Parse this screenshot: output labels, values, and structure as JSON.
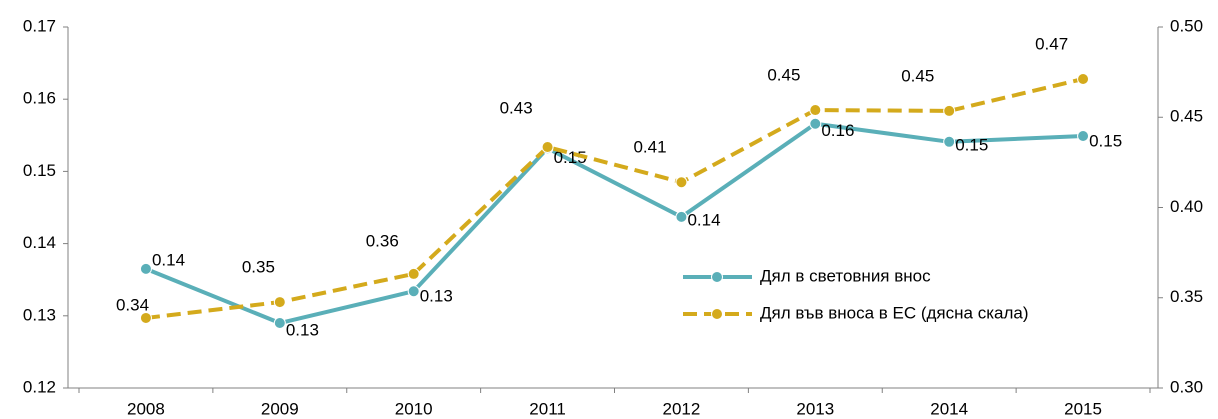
{
  "chart_data": {
    "type": "line",
    "categories": [
      "2008",
      "2009",
      "2010",
      "2011",
      "2012",
      "2013",
      "2014",
      "2015"
    ],
    "ylim": [
      0.12,
      0.17
    ],
    "yticks": [
      0.12,
      0.13,
      0.14,
      0.15,
      0.16,
      0.17
    ],
    "y2lim": [
      0.3,
      0.5
    ],
    "y2ticks": [
      {
        "value": 0.3,
        "label": "0.30"
      },
      0.35,
      {
        "value": 0.4,
        "label": "0.40"
      },
      0.45,
      {
        "value": 0.5,
        "label": "0.50"
      }
    ],
    "grid": false,
    "legend": "center-right",
    "series": [
      {
        "name": "Дял в световния внос",
        "color": "#5aafb8",
        "dash": false,
        "values": [
          0.1365,
          0.129,
          0.1334,
          0.1532,
          0.1437,
          0.1566,
          0.1541,
          0.1549
        ],
        "value_labels": [
          "0.14",
          "0.13",
          "0.13",
          "0.15",
          "0.14",
          "0.16",
          "0.15",
          "0.15"
        ]
      },
      {
        "name": "Дял във вноса в ЕС (дясна скала)",
        "color": "#d4aa1c",
        "dash": true,
        "axis": "y2",
        "values": [
          0.3388,
          0.3476,
          0.3632,
          0.4335,
          0.414,
          0.454,
          0.4535,
          0.4712
        ],
        "value_labels": [
          "0.34",
          "0.35",
          "0.36",
          "0.43",
          "0.41",
          "0.45",
          "0.45",
          "0.47"
        ]
      }
    ]
  }
}
